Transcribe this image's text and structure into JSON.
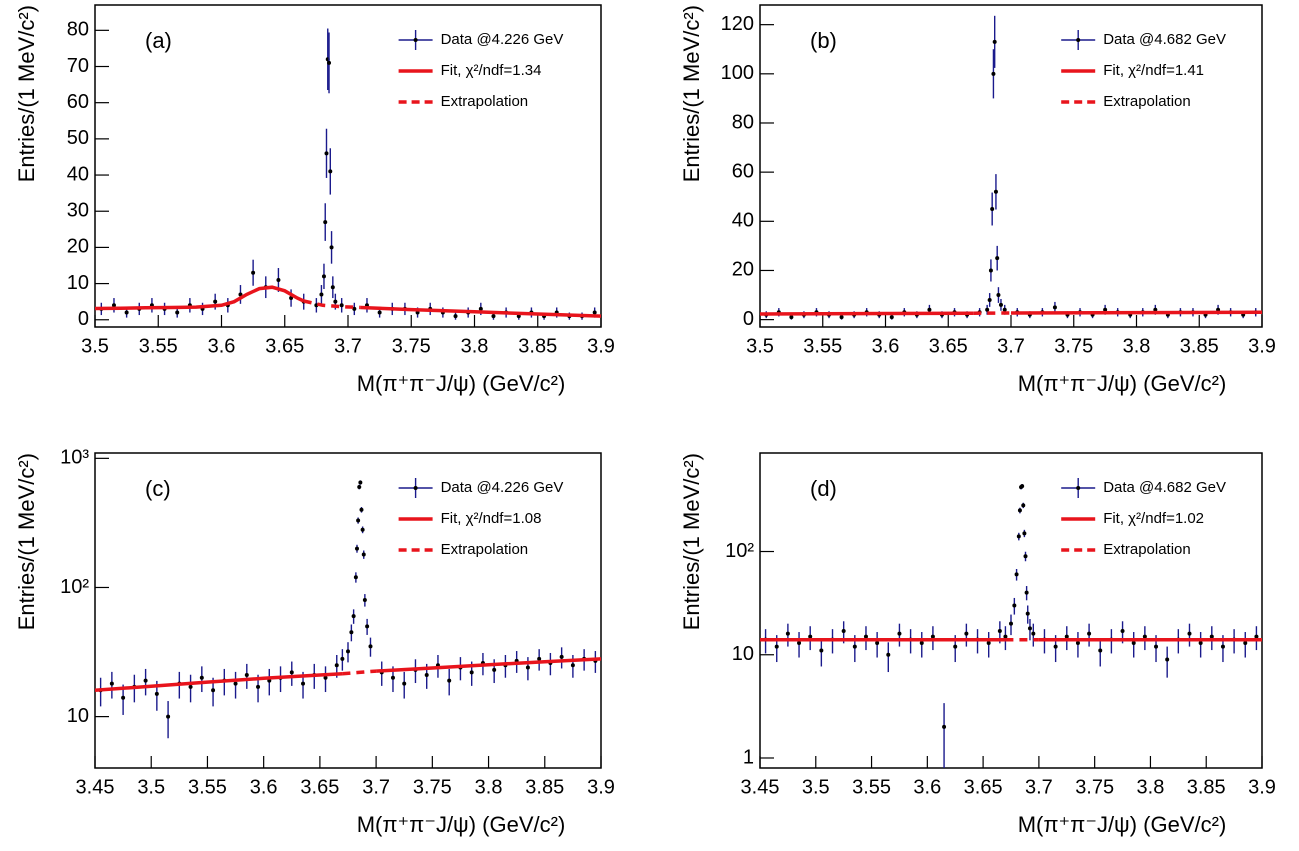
{
  "chart_data": [
    {
      "type": "errorbar",
      "panel_label": "(a)",
      "xlabel": "M(π⁺π⁻J/ψ) (GeV/c²)",
      "ylabel": "Entries/(1 MeV/c²)",
      "xlim": [
        3.5,
        3.9
      ],
      "xticks": [
        3.5,
        3.55,
        3.6,
        3.65,
        3.7,
        3.75,
        3.8,
        3.85,
        3.9
      ],
      "ylim": [
        -2,
        87
      ],
      "yticks": [
        0,
        10,
        20,
        30,
        40,
        50,
        60,
        70,
        80
      ],
      "log": false,
      "series": [
        {
          "name": "Data @4.226 GeV",
          "color": "#1a1a8c",
          "style": "errorbar",
          "x": [
            3.505,
            3.515,
            3.525,
            3.535,
            3.545,
            3.555,
            3.565,
            3.575,
            3.585,
            3.595,
            3.605,
            3.615,
            3.625,
            3.635,
            3.645,
            3.655,
            3.665,
            3.675,
            3.679,
            3.681,
            3.682,
            3.683,
            3.684,
            3.685,
            3.686,
            3.687,
            3.688,
            3.69,
            3.695,
            3.705,
            3.715,
            3.725,
            3.735,
            3.745,
            3.755,
            3.765,
            3.775,
            3.785,
            3.795,
            3.805,
            3.815,
            3.825,
            3.835,
            3.845,
            3.855,
            3.865,
            3.875,
            3.885,
            3.895
          ],
          "values": [
            3,
            4,
            2,
            3,
            4,
            3,
            2,
            4,
            3,
            5,
            4,
            7,
            13,
            9,
            11,
            6,
            5,
            4,
            7,
            12,
            27,
            46,
            72,
            71,
            41,
            20,
            9,
            5,
            4,
            3,
            4,
            2,
            3,
            3,
            2,
            3,
            2,
            1,
            2,
            3,
            1,
            2,
            1,
            2,
            1,
            2,
            1,
            1,
            2
          ],
          "errors": [
            1.7,
            2,
            1.4,
            1.7,
            2,
            1.7,
            1.4,
            2,
            1.7,
            2.2,
            2,
            2.6,
            3.6,
            3,
            3.3,
            2.4,
            2.2,
            2,
            2.6,
            3.5,
            5.2,
            6.8,
            8.5,
            8.4,
            6.4,
            4.5,
            3,
            2.2,
            2,
            1.7,
            2,
            1.4,
            1.7,
            1.7,
            1.4,
            1.7,
            1.4,
            1,
            1.4,
            1.7,
            1,
            1.4,
            1,
            1.4,
            1,
            1.4,
            1,
            1,
            1.4
          ]
        },
        {
          "name": "Fit, χ²/ndf=1.34",
          "color": "#e8141c",
          "style": "solid",
          "x": [
            3.5,
            3.52,
            3.54,
            3.56,
            3.58,
            3.6,
            3.61,
            3.62,
            3.63,
            3.64,
            3.65,
            3.66,
            3.665,
            3.68,
            3.71,
            3.75,
            3.8,
            3.85,
            3.9
          ],
          "values": [
            3.1,
            3.2,
            3.3,
            3.4,
            3.5,
            4.0,
            5.0,
            7.0,
            8.6,
            9.0,
            8.0,
            6.0,
            5.2,
            null,
            3.4,
            2.8,
            2.2,
            1.6,
            1.0
          ]
        },
        {
          "name": "Extrapolation",
          "color": "#e8141c",
          "style": "dashed",
          "x": [
            3.665,
            3.68,
            3.695,
            3.71
          ],
          "values": [
            5.2,
            4.0,
            3.6,
            3.4
          ]
        }
      ]
    },
    {
      "type": "errorbar",
      "panel_label": "(b)",
      "xlabel": "M(π⁺π⁻J/ψ) (GeV/c²)",
      "ylabel": "Entries/(1 MeV/c²)",
      "xlim": [
        3.5,
        3.9
      ],
      "xticks": [
        3.5,
        3.55,
        3.6,
        3.65,
        3.7,
        3.75,
        3.8,
        3.85,
        3.9
      ],
      "ylim": [
        -3,
        128
      ],
      "yticks": [
        0,
        20,
        40,
        60,
        80,
        100,
        120
      ],
      "log": false,
      "series": [
        {
          "name": "Data @4.682 GeV",
          "color": "#1a1a8c",
          "style": "errorbar",
          "x": [
            3.505,
            3.515,
            3.525,
            3.535,
            3.545,
            3.555,
            3.565,
            3.575,
            3.585,
            3.595,
            3.605,
            3.615,
            3.625,
            3.635,
            3.645,
            3.655,
            3.665,
            3.675,
            3.681,
            3.683,
            3.684,
            3.685,
            3.686,
            3.687,
            3.688,
            3.689,
            3.69,
            3.692,
            3.695,
            3.705,
            3.715,
            3.725,
            3.735,
            3.745,
            3.755,
            3.765,
            3.775,
            3.785,
            3.795,
            3.805,
            3.815,
            3.825,
            3.835,
            3.845,
            3.855,
            3.865,
            3.875,
            3.885,
            3.895
          ],
          "values": [
            2,
            3,
            1,
            2,
            3,
            2,
            1,
            2,
            3,
            2,
            1,
            3,
            2,
            4,
            2,
            3,
            2,
            3,
            4,
            8,
            20,
            45,
            100,
            113,
            52,
            25,
            10,
            6,
            4,
            3,
            2,
            3,
            5,
            2,
            3,
            2,
            4,
            3,
            2,
            3,
            4,
            2,
            3,
            3,
            2,
            4,
            3,
            2,
            3
          ],
          "errors": [
            1.4,
            1.7,
            1,
            1.4,
            1.7,
            1.4,
            1,
            1.4,
            1.7,
            1.4,
            1,
            1.7,
            1.4,
            2,
            1.4,
            1.7,
            1.4,
            1.7,
            2,
            2.8,
            4.5,
            6.7,
            10,
            10.6,
            7.2,
            5,
            3.2,
            2.4,
            2,
            1.7,
            1.4,
            1.7,
            2.2,
            1.4,
            1.7,
            1.4,
            2,
            1.7,
            1.4,
            1.7,
            2,
            1.4,
            1.7,
            1.7,
            1.4,
            2,
            1.7,
            1.4,
            1.7
          ]
        },
        {
          "name": "Fit, χ²/ndf=1.41",
          "color": "#e8141c",
          "style": "solid",
          "x": [
            3.5,
            3.6,
            3.67,
            3.685,
            3.7,
            3.8,
            3.9
          ],
          "values": [
            2.3,
            2.5,
            2.6,
            null,
            2.7,
            2.85,
            3.0
          ]
        },
        {
          "name": "Extrapolation",
          "color": "#e8141c",
          "style": "dashed",
          "x": [
            3.67,
            3.685,
            3.7
          ],
          "values": [
            2.6,
            2.65,
            2.7
          ]
        }
      ]
    },
    {
      "type": "errorbar",
      "panel_label": "(c)",
      "xlabel": "M(π⁺π⁻J/ψ) (GeV/c²)",
      "ylabel": "Entries/(1 MeV/c²)",
      "xlim": [
        3.45,
        3.9
      ],
      "xticks": [
        3.45,
        3.5,
        3.55,
        3.6,
        3.65,
        3.7,
        3.75,
        3.8,
        3.85,
        3.9
      ],
      "ylim": [
        4,
        1100
      ],
      "yticks": [
        10,
        {
          "value": 100,
          "label": "10²"
        },
        {
          "value": 1000,
          "label": "10³"
        }
      ],
      "log": true,
      "series": [
        {
          "name": "Data @4.226 GeV",
          "color": "#1a1a8c",
          "style": "errorbar",
          "x": [
            3.455,
            3.465,
            3.475,
            3.485,
            3.495,
            3.505,
            3.515,
            3.525,
            3.535,
            3.545,
            3.555,
            3.565,
            3.575,
            3.585,
            3.595,
            3.605,
            3.615,
            3.625,
            3.635,
            3.645,
            3.655,
            3.665,
            3.67,
            3.675,
            3.678,
            3.68,
            3.682,
            3.683,
            3.684,
            3.685,
            3.686,
            3.687,
            3.688,
            3.689,
            3.69,
            3.692,
            3.695,
            3.705,
            3.715,
            3.725,
            3.735,
            3.745,
            3.755,
            3.765,
            3.775,
            3.785,
            3.795,
            3.805,
            3.815,
            3.825,
            3.835,
            3.845,
            3.855,
            3.865,
            3.875,
            3.885,
            3.895
          ],
          "values": [
            16,
            18,
            14,
            17,
            19,
            15,
            10,
            18,
            17,
            20,
            16,
            19,
            18,
            21,
            17,
            19,
            20,
            22,
            18,
            21,
            20,
            25,
            28,
            32,
            45,
            60,
            120,
            200,
            330,
            600,
            650,
            400,
            280,
            180,
            80,
            50,
            35,
            22,
            20,
            18,
            23,
            21,
            25,
            19,
            24,
            22,
            26,
            23,
            25,
            27,
            24,
            28,
            26,
            29,
            25,
            28,
            27
          ],
          "errors": [
            4,
            4.2,
            3.7,
            4.1,
            4.4,
            3.9,
            3.2,
            4.2,
            4.1,
            4.5,
            4,
            4.4,
            4.2,
            4.6,
            4.1,
            4.4,
            4.5,
            4.7,
            4.2,
            4.6,
            4.5,
            5,
            5.3,
            5.7,
            6.7,
            7.7,
            11,
            14.1,
            18.2,
            24.5,
            25.5,
            20,
            16.7,
            13.4,
            8.9,
            7.1,
            5.9,
            4.7,
            4.5,
            4.2,
            4.8,
            4.6,
            5,
            4.4,
            4.9,
            4.7,
            5.1,
            4.8,
            5,
            5.2,
            4.9,
            5.3,
            5.1,
            5.4,
            5,
            5.3,
            5.2
          ]
        },
        {
          "name": "Fit, χ²/ndf=1.08",
          "color": "#e8141c",
          "style": "solid",
          "x": [
            3.45,
            3.5,
            3.55,
            3.6,
            3.65,
            3.67,
            3.685,
            3.7,
            3.75,
            3.8,
            3.85,
            3.9
          ],
          "values": [
            16,
            17.2,
            18.5,
            19.8,
            21,
            21.5,
            null,
            22.5,
            23.8,
            25.2,
            26.6,
            28
          ]
        },
        {
          "name": "Extrapolation",
          "color": "#e8141c",
          "style": "dashed",
          "x": [
            3.67,
            3.685,
            3.7
          ],
          "values": [
            21.5,
            22,
            22.5
          ]
        }
      ]
    },
    {
      "type": "errorbar",
      "panel_label": "(d)",
      "xlabel": "M(π⁺π⁻J/ψ) (GeV/c²)",
      "ylabel": "Entries/(1 MeV/c²)",
      "xlim": [
        3.45,
        3.9
      ],
      "xticks": [
        3.45,
        3.5,
        3.55,
        3.6,
        3.65,
        3.7,
        3.75,
        3.8,
        3.85,
        3.9
      ],
      "ylim": [
        0.8,
        900
      ],
      "yticks": [
        1,
        10,
        {
          "value": 100,
          "label": "10²"
        }
      ],
      "log": true,
      "series": [
        {
          "name": "Data @4.682 GeV",
          "color": "#1a1a8c",
          "style": "errorbar",
          "x": [
            3.455,
            3.465,
            3.475,
            3.485,
            3.495,
            3.505,
            3.515,
            3.525,
            3.535,
            3.545,
            3.555,
            3.565,
            3.575,
            3.585,
            3.595,
            3.605,
            3.615,
            3.625,
            3.635,
            3.645,
            3.655,
            3.665,
            3.67,
            3.675,
            3.678,
            3.68,
            3.682,
            3.683,
            3.684,
            3.685,
            3.686,
            3.687,
            3.688,
            3.689,
            3.69,
            3.692,
            3.695,
            3.705,
            3.715,
            3.725,
            3.735,
            3.745,
            3.755,
            3.765,
            3.775,
            3.785,
            3.795,
            3.805,
            3.815,
            3.825,
            3.835,
            3.845,
            3.855,
            3.865,
            3.875,
            3.885,
            3.895
          ],
          "values": [
            14,
            12,
            16,
            13,
            15,
            11,
            14,
            17,
            12,
            15,
            13,
            10,
            16,
            14,
            13,
            15,
            2,
            12,
            16,
            14,
            13,
            17,
            15,
            20,
            30,
            60,
            140,
            250,
            420,
            430,
            280,
            150,
            90,
            40,
            25,
            18,
            16,
            14,
            12,
            15,
            13,
            16,
            11,
            14,
            17,
            13,
            15,
            12,
            9,
            14,
            16,
            13,
            15,
            12,
            14,
            13,
            15
          ],
          "errors": [
            3.7,
            3.5,
            4,
            3.6,
            3.9,
            3.3,
            3.7,
            4.1,
            3.5,
            3.9,
            3.6,
            3.2,
            4,
            3.7,
            3.6,
            3.9,
            1.4,
            3.5,
            4,
            3.7,
            3.6,
            4.1,
            3.9,
            4.5,
            5.5,
            7.7,
            11.8,
            15.8,
            20.5,
            20.7,
            16.7,
            12.2,
            9.5,
            6.3,
            5,
            4.2,
            4,
            3.7,
            3.5,
            3.9,
            3.6,
            4,
            3.3,
            3.7,
            4.1,
            3.6,
            3.9,
            3.5,
            3,
            3.7,
            4,
            3.6,
            3.9,
            3.5,
            3.7,
            3.6,
            3.9
          ]
        },
        {
          "name": "Fit, χ²/ndf=1.02",
          "color": "#e8141c",
          "style": "solid",
          "x": [
            3.45,
            3.55,
            3.65,
            3.67,
            3.685,
            3.7,
            3.8,
            3.9
          ],
          "values": [
            14,
            14,
            14,
            14,
            null,
            14,
            14,
            14
          ]
        },
        {
          "name": "Extrapolation",
          "color": "#e8141c",
          "style": "dashed",
          "x": [
            3.67,
            3.685,
            3.7
          ],
          "values": [
            14,
            14,
            14
          ]
        }
      ]
    }
  ]
}
